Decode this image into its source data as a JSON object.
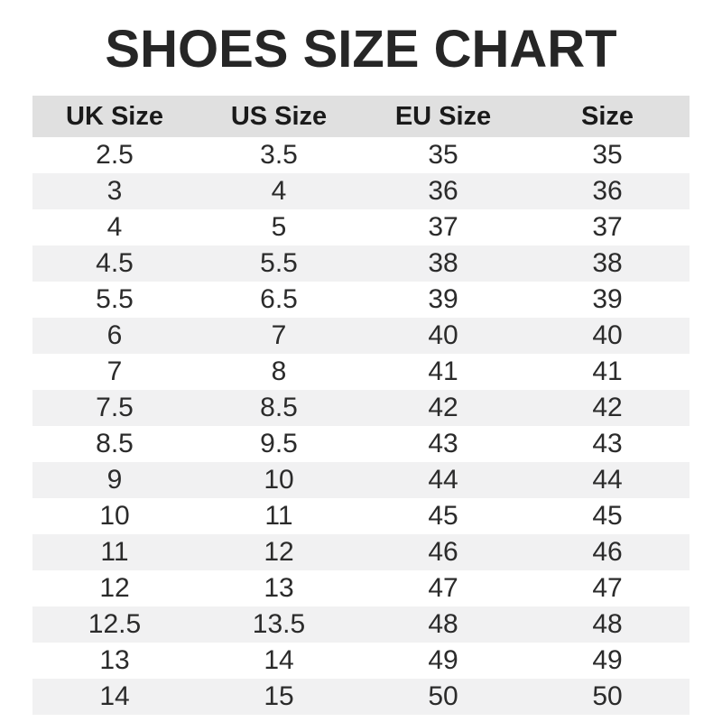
{
  "title": "SHOES SIZE CHART",
  "colors": {
    "title": "#262626",
    "text": "#222222",
    "header_bg": "#e0e0e0",
    "row_alt_bg": "#f1f1f2",
    "row_bg": "#ffffff"
  },
  "table": {
    "columns": [
      "UK Size",
      "US Size",
      "EU Size",
      "Size"
    ],
    "rows": [
      [
        "2.5",
        "3.5",
        "35",
        "35"
      ],
      [
        "3",
        "4",
        "36",
        "36"
      ],
      [
        "4",
        "5",
        "37",
        "37"
      ],
      [
        "4.5",
        "5.5",
        "38",
        "38"
      ],
      [
        "5.5",
        "6.5",
        "39",
        "39"
      ],
      [
        "6",
        "7",
        "40",
        "40"
      ],
      [
        "7",
        "8",
        "41",
        "41"
      ],
      [
        "7.5",
        "8.5",
        "42",
        "42"
      ],
      [
        "8.5",
        "9.5",
        "43",
        "43"
      ],
      [
        "9",
        "10",
        "44",
        "44"
      ],
      [
        "10",
        "11",
        "45",
        "45"
      ],
      [
        "11",
        "12",
        "46",
        "46"
      ],
      [
        "12",
        "13",
        "47",
        "47"
      ],
      [
        "12.5",
        "13.5",
        "48",
        "48"
      ],
      [
        "13",
        "14",
        "49",
        "49"
      ],
      [
        "14",
        "15",
        "50",
        "50"
      ]
    ]
  },
  "chart_data": {
    "type": "table",
    "title": "SHOES SIZE CHART",
    "columns": [
      "UK Size",
      "US Size",
      "EU Size",
      "Size"
    ],
    "rows": [
      [
        "2.5",
        "3.5",
        "35",
        "35"
      ],
      [
        "3",
        "4",
        "36",
        "36"
      ],
      [
        "4",
        "5",
        "37",
        "37"
      ],
      [
        "4.5",
        "5.5",
        "38",
        "38"
      ],
      [
        "5.5",
        "6.5",
        "39",
        "39"
      ],
      [
        "6",
        "7",
        "40",
        "40"
      ],
      [
        "7",
        "8",
        "41",
        "41"
      ],
      [
        "7.5",
        "8.5",
        "42",
        "42"
      ],
      [
        "8.5",
        "9.5",
        "43",
        "43"
      ],
      [
        "9",
        "10",
        "44",
        "44"
      ],
      [
        "10",
        "11",
        "45",
        "45"
      ],
      [
        "11",
        "12",
        "46",
        "46"
      ],
      [
        "12",
        "13",
        "47",
        "47"
      ],
      [
        "12.5",
        "13.5",
        "48",
        "48"
      ],
      [
        "13",
        "14",
        "49",
        "49"
      ],
      [
        "14",
        "15",
        "50",
        "50"
      ]
    ],
    "layout": {
      "header_background": "#e0e0e0",
      "zebra_striping": true,
      "zebra_background": "#f1f1f2",
      "grid": false
    }
  }
}
